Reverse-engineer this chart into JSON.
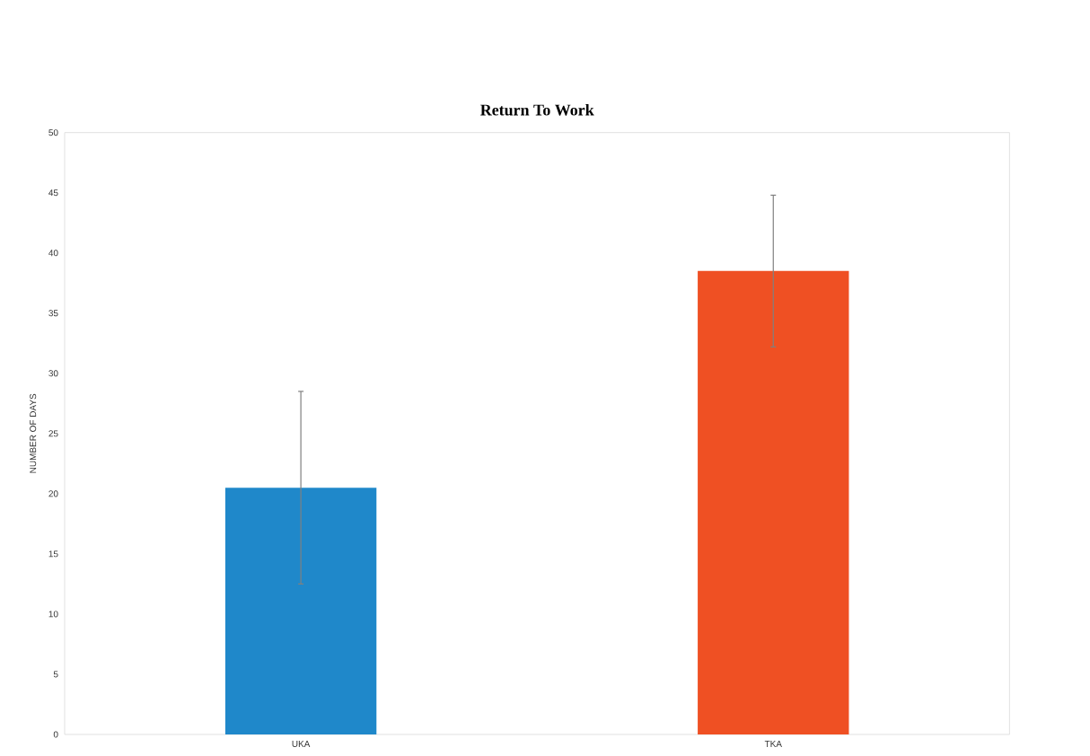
{
  "chart_data": {
    "type": "bar",
    "title": "Return To Work",
    "ylabel": "NUMBER OF DAYS",
    "categories": [
      "UKA",
      "TKA"
    ],
    "values": [
      20.5,
      38.5
    ],
    "colors": [
      "#1f88ca",
      "#ef5023"
    ],
    "errors": [
      8,
      6.3
    ],
    "ylim": [
      0,
      50
    ],
    "yticks": [
      0,
      5,
      10,
      15,
      20,
      25,
      30,
      35,
      40,
      45,
      50
    ],
    "grid": false
  }
}
